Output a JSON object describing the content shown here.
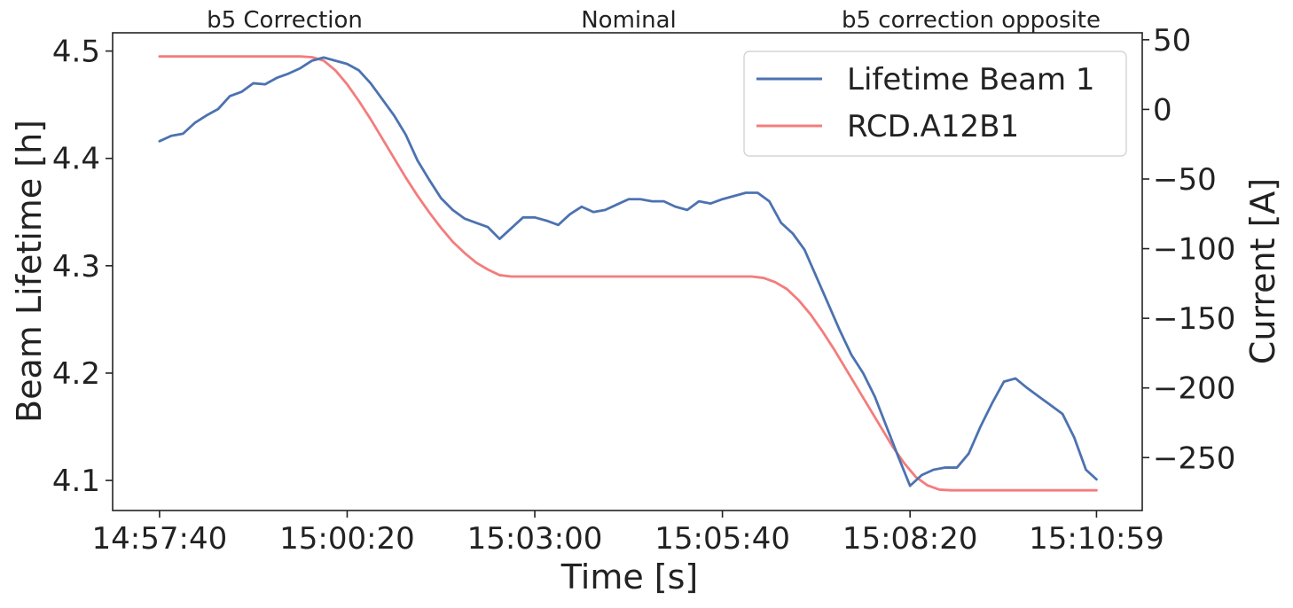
{
  "chart_data": {
    "type": "line",
    "xlabel": "Time [s]",
    "ylabel_left": "Beam Lifetime [h]",
    "ylabel_right": "Current [A]",
    "x_ticks": [
      "14:57:40",
      "15:00:20",
      "15:03:00",
      "15:05:40",
      "15:08:20",
      "15:10:59"
    ],
    "x_tick_seconds": [
      0,
      160,
      320,
      480,
      640,
      799
    ],
    "xlim": [
      -40,
      838
    ],
    "ylim_left": [
      4.072,
      4.517
    ],
    "yticks_left": [
      4.1,
      4.2,
      4.3,
      4.4,
      4.5
    ],
    "ylim_right": [
      -288,
      55
    ],
    "yticks_right": [
      50,
      0,
      -50,
      -100,
      -150,
      -200,
      -250
    ],
    "yticks_right_labels": [
      "50",
      "0",
      "−50",
      "−100",
      "−150",
      "−200",
      "−250"
    ],
    "annotations": [
      "b5 Correction",
      "Nominal",
      "b5 correction opposite"
    ],
    "legend_position": "upper right",
    "grid": false,
    "series": [
      {
        "name": "Lifetime Beam 1",
        "axis": "left",
        "color": "#4c72b0",
        "points": [
          [
            0,
            4.416
          ],
          [
            10,
            4.421
          ],
          [
            20,
            4.423
          ],
          [
            30,
            4.433
          ],
          [
            40,
            4.44
          ],
          [
            50,
            4.446
          ],
          [
            60,
            4.458
          ],
          [
            70,
            4.462
          ],
          [
            80,
            4.47
          ],
          [
            90,
            4.469
          ],
          [
            100,
            4.475
          ],
          [
            110,
            4.479
          ],
          [
            120,
            4.484
          ],
          [
            130,
            4.491
          ],
          [
            140,
            4.494
          ],
          [
            150,
            4.491
          ],
          [
            160,
            4.488
          ],
          [
            170,
            4.482
          ],
          [
            180,
            4.47
          ],
          [
            190,
            4.455
          ],
          [
            200,
            4.44
          ],
          [
            210,
            4.422
          ],
          [
            220,
            4.398
          ],
          [
            230,
            4.38
          ],
          [
            240,
            4.363
          ],
          [
            250,
            4.352
          ],
          [
            260,
            4.344
          ],
          [
            270,
            4.34
          ],
          [
            280,
            4.336
          ],
          [
            290,
            4.325
          ],
          [
            300,
            4.335
          ],
          [
            310,
            4.345
          ],
          [
            320,
            4.345
          ],
          [
            330,
            4.342
          ],
          [
            340,
            4.338
          ],
          [
            350,
            4.348
          ],
          [
            360,
            4.355
          ],
          [
            370,
            4.35
          ],
          [
            380,
            4.352
          ],
          [
            390,
            4.357
          ],
          [
            400,
            4.362
          ],
          [
            410,
            4.362
          ],
          [
            420,
            4.36
          ],
          [
            430,
            4.36
          ],
          [
            440,
            4.355
          ],
          [
            450,
            4.352
          ],
          [
            460,
            4.36
          ],
          [
            470,
            4.358
          ],
          [
            480,
            4.362
          ],
          [
            490,
            4.365
          ],
          [
            500,
            4.368
          ],
          [
            510,
            4.368
          ],
          [
            520,
            4.36
          ],
          [
            530,
            4.34
          ],
          [
            540,
            4.33
          ],
          [
            550,
            4.315
          ],
          [
            560,
            4.29
          ],
          [
            570,
            4.265
          ],
          [
            580,
            4.24
          ],
          [
            590,
            4.217
          ],
          [
            600,
            4.2
          ],
          [
            610,
            4.178
          ],
          [
            620,
            4.15
          ],
          [
            630,
            4.122
          ],
          [
            640,
            4.095
          ],
          [
            650,
            4.105
          ],
          [
            660,
            4.11
          ],
          [
            670,
            4.112
          ],
          [
            680,
            4.112
          ],
          [
            690,
            4.125
          ],
          [
            700,
            4.15
          ],
          [
            710,
            4.172
          ],
          [
            720,
            4.192
          ],
          [
            730,
            4.195
          ],
          [
            740,
            4.186
          ],
          [
            750,
            4.178
          ],
          [
            760,
            4.17
          ],
          [
            770,
            4.162
          ],
          [
            780,
            4.14
          ],
          [
            790,
            4.11
          ],
          [
            799,
            4.101
          ]
        ]
      },
      {
        "name": "RCD.A12B1",
        "axis": "right",
        "color": "#f47c7c",
        "points": [
          [
            0,
            38
          ],
          [
            100,
            38
          ],
          [
            120,
            38
          ],
          [
            130,
            37.5
          ],
          [
            140,
            35
          ],
          [
            150,
            28
          ],
          [
            160,
            18
          ],
          [
            170,
            6
          ],
          [
            180,
            -7
          ],
          [
            190,
            -21
          ],
          [
            200,
            -35
          ],
          [
            210,
            -49
          ],
          [
            220,
            -62
          ],
          [
            230,
            -74
          ],
          [
            240,
            -85
          ],
          [
            250,
            -95
          ],
          [
            260,
            -103
          ],
          [
            270,
            -110
          ],
          [
            280,
            -115
          ],
          [
            290,
            -119
          ],
          [
            300,
            -120
          ],
          [
            400,
            -120
          ],
          [
            500,
            -120
          ],
          [
            505,
            -120
          ],
          [
            515,
            -121
          ],
          [
            525,
            -124
          ],
          [
            535,
            -129
          ],
          [
            545,
            -137
          ],
          [
            555,
            -147
          ],
          [
            565,
            -159
          ],
          [
            575,
            -172
          ],
          [
            585,
            -186
          ],
          [
            595,
            -200
          ],
          [
            605,
            -214
          ],
          [
            615,
            -228
          ],
          [
            625,
            -242
          ],
          [
            635,
            -254
          ],
          [
            645,
            -264
          ],
          [
            655,
            -270
          ],
          [
            665,
            -273
          ],
          [
            675,
            -273.5
          ],
          [
            700,
            -273.5
          ],
          [
            799,
            -273.5
          ]
        ]
      }
    ]
  }
}
